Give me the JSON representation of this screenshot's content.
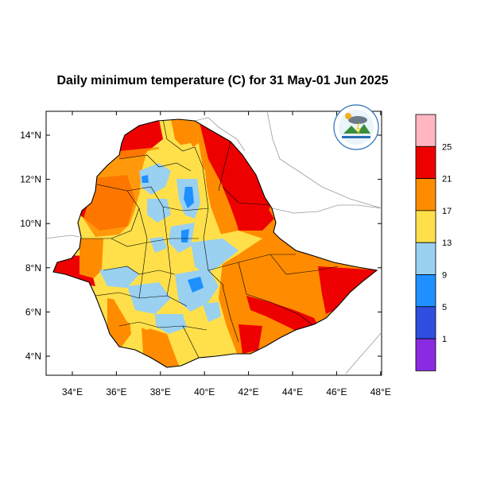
{
  "title": "Daily minimum temperature (C) for 31 May-01 Jun 2025",
  "map": {
    "lon_range": [
      33,
      48.2
    ],
    "lat_range": [
      3.3,
      15
    ],
    "lon_ticks": [
      "34°E",
      "36°E",
      "38°E",
      "40°E",
      "42°E",
      "44°E",
      "46°E",
      "48°E"
    ],
    "lat_ticks": [
      "14°N",
      "12°N",
      "10°N",
      "8°N",
      "6°N",
      "4°N"
    ],
    "background": "#ffffff",
    "boundary_color": "#000000",
    "neighbor_border_color": "#9a9a9a"
  },
  "colorbar": {
    "labels": [
      "25",
      "21",
      "17",
      "13",
      "9",
      "5",
      "1"
    ],
    "bins": [
      {
        "color": "#ffb6c1"
      },
      {
        "color": "#ee0000"
      },
      {
        "color": "#ff8c00"
      },
      {
        "color": "#ffe04a"
      },
      {
        "color": "#9ad0f0"
      },
      {
        "color": "#1e90ff"
      },
      {
        "color": "#2e4fe0"
      },
      {
        "color": "#8a2be2"
      }
    ]
  },
  "logo": {
    "name": "ethiopian-meteorology-institute-logo"
  }
}
